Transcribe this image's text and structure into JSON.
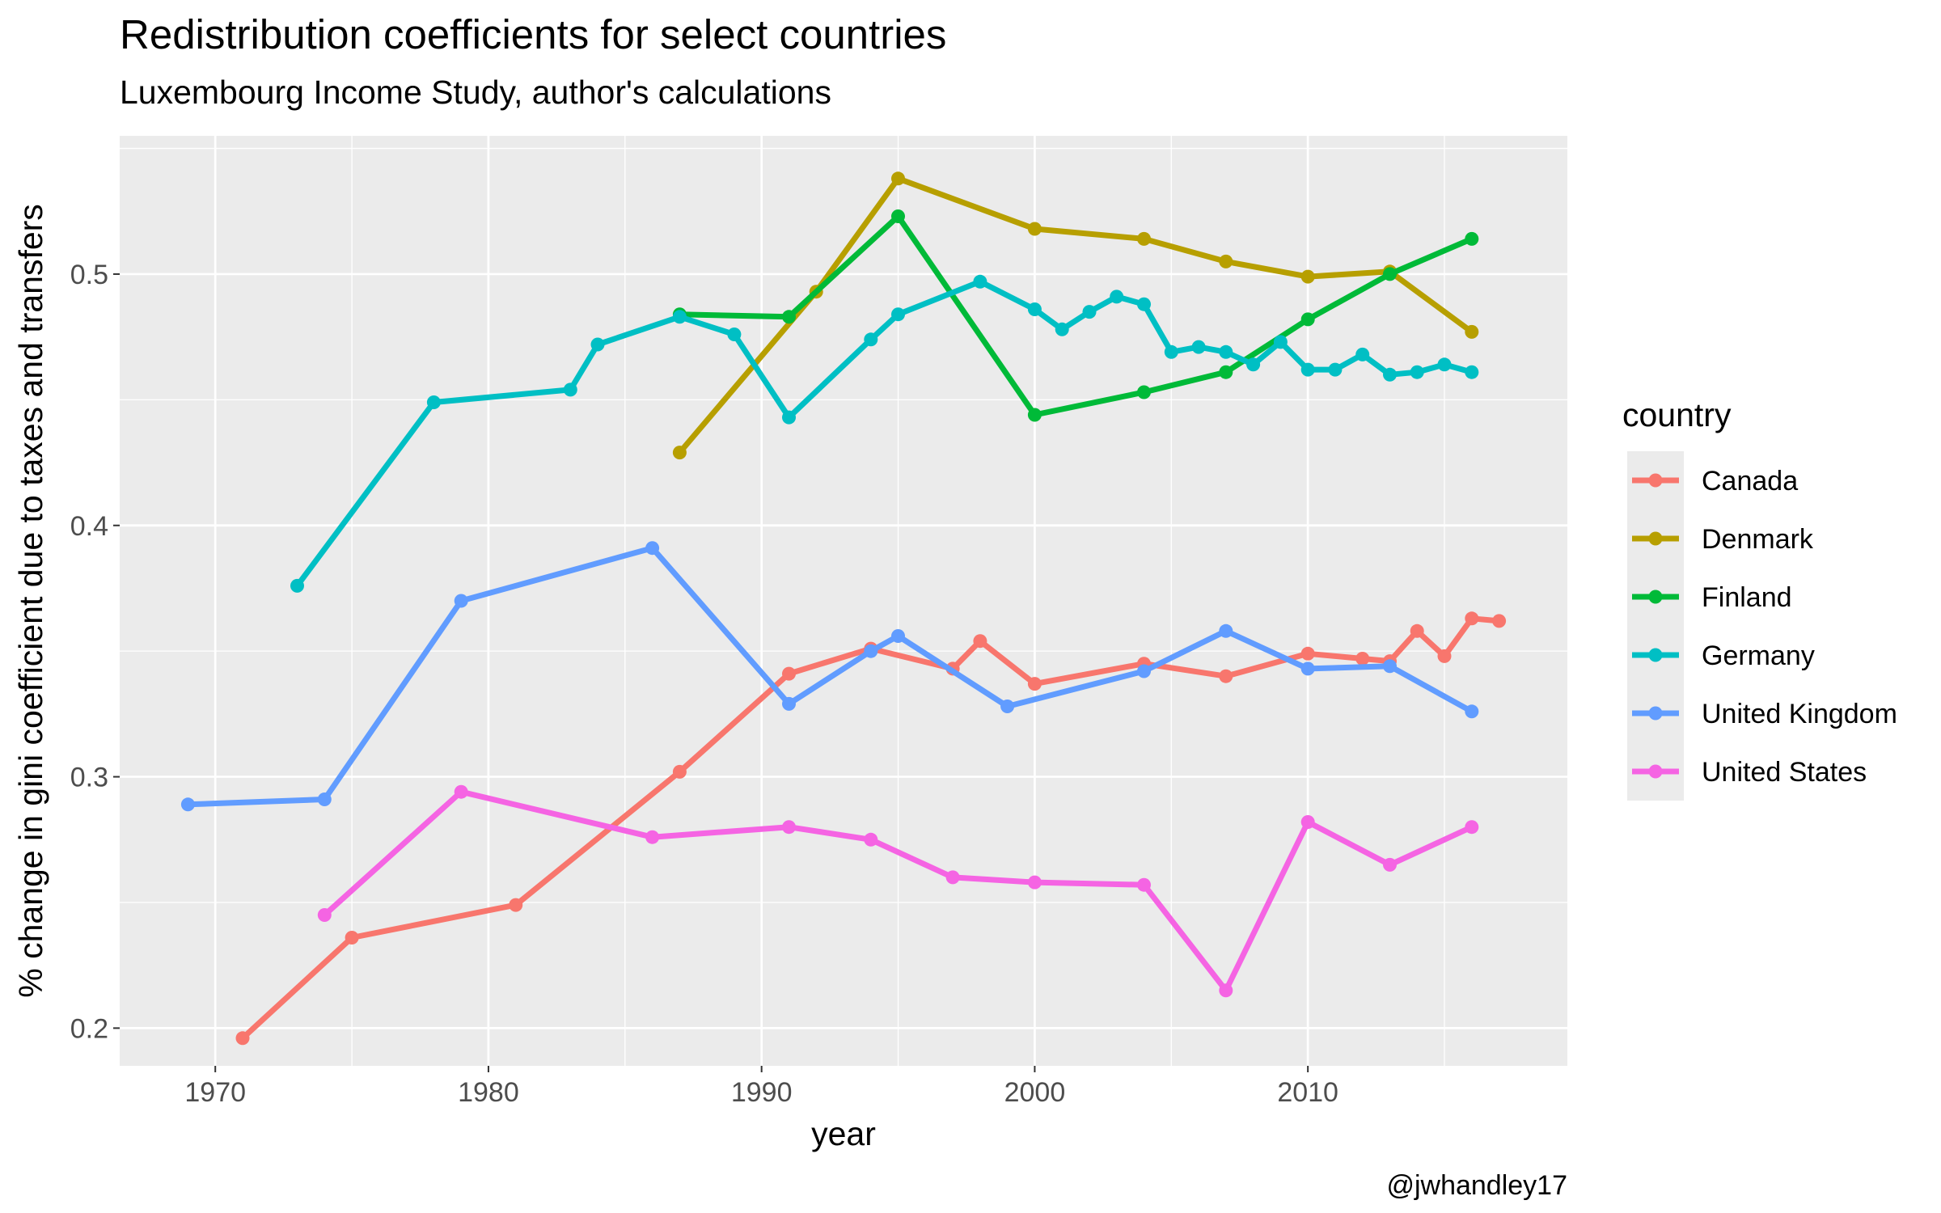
{
  "chart_data": {
    "type": "line",
    "title": "Redistribution coefficients for select countries",
    "subtitle": "Luxembourg Income Study, author's calculations",
    "xlabel": "year",
    "ylabel": "% change in gini coefficient due to taxes and transfers",
    "caption": "@jwhandley17",
    "legend_title": "country",
    "legend_position": "right",
    "xlim": [
      1966.5,
      2019.5
    ],
    "ylim": [
      0.185,
      0.555
    ],
    "x_ticks": [
      1970,
      1980,
      1990,
      2000,
      2010
    ],
    "y_ticks": [
      0.2,
      0.3,
      0.4,
      0.5
    ],
    "x_tick_labels": [
      "1970",
      "1980",
      "1990",
      "2000",
      "2010"
    ],
    "y_tick_labels": [
      "0.2",
      "0.3",
      "0.4",
      "0.5"
    ],
    "grid": true,
    "panel_background": "#ebebeb",
    "series": [
      {
        "name": "Canada",
        "color": "#F8766D",
        "points": [
          [
            1971,
            0.196
          ],
          [
            1975,
            0.236
          ],
          [
            1981,
            0.249
          ],
          [
            1987,
            0.302
          ],
          [
            1991,
            0.341
          ],
          [
            1994,
            0.351
          ],
          [
            1997,
            0.343
          ],
          [
            1998,
            0.354
          ],
          [
            2000,
            0.337
          ],
          [
            2004,
            0.345
          ],
          [
            2007,
            0.34
          ],
          [
            2010,
            0.349
          ],
          [
            2012,
            0.347
          ],
          [
            2013,
            0.346
          ],
          [
            2014,
            0.358
          ],
          [
            2015,
            0.348
          ],
          [
            2016,
            0.363
          ],
          [
            2017,
            0.362
          ]
        ]
      },
      {
        "name": "Denmark",
        "color": "#B79F00",
        "points": [
          [
            1987,
            0.429
          ],
          [
            1992,
            0.493
          ],
          [
            1995,
            0.538
          ],
          [
            2000,
            0.518
          ],
          [
            2004,
            0.514
          ],
          [
            2007,
            0.505
          ],
          [
            2010,
            0.499
          ],
          [
            2013,
            0.501
          ],
          [
            2016,
            0.477
          ]
        ]
      },
      {
        "name": "Finland",
        "color": "#00BA38",
        "points": [
          [
            1987,
            0.484
          ],
          [
            1991,
            0.483
          ],
          [
            1995,
            0.523
          ],
          [
            2000,
            0.444
          ],
          [
            2004,
            0.453
          ],
          [
            2007,
            0.461
          ],
          [
            2010,
            0.482
          ],
          [
            2013,
            0.5
          ],
          [
            2016,
            0.514
          ]
        ]
      },
      {
        "name": "Germany",
        "color": "#00BFC4",
        "points": [
          [
            1973,
            0.376
          ],
          [
            1978,
            0.449
          ],
          [
            1983,
            0.454
          ],
          [
            1984,
            0.472
          ],
          [
            1987,
            0.483
          ],
          [
            1989,
            0.476
          ],
          [
            1991,
            0.443
          ],
          [
            1994,
            0.474
          ],
          [
            1995,
            0.484
          ],
          [
            1998,
            0.497
          ],
          [
            2000,
            0.486
          ],
          [
            2001,
            0.478
          ],
          [
            2002,
            0.485
          ],
          [
            2003,
            0.491
          ],
          [
            2004,
            0.488
          ],
          [
            2005,
            0.469
          ],
          [
            2006,
            0.471
          ],
          [
            2007,
            0.469
          ],
          [
            2008,
            0.464
          ],
          [
            2009,
            0.473
          ],
          [
            2010,
            0.462
          ],
          [
            2011,
            0.462
          ],
          [
            2012,
            0.468
          ],
          [
            2013,
            0.46
          ],
          [
            2014,
            0.461
          ],
          [
            2015,
            0.464
          ],
          [
            2016,
            0.461
          ]
        ]
      },
      {
        "name": "United Kingdom",
        "color": "#619CFF",
        "points": [
          [
            1969,
            0.289
          ],
          [
            1974,
            0.291
          ],
          [
            1979,
            0.37
          ],
          [
            1986,
            0.391
          ],
          [
            1991,
            0.329
          ],
          [
            1994,
            0.35
          ],
          [
            1995,
            0.356
          ],
          [
            1999,
            0.328
          ],
          [
            2004,
            0.342
          ],
          [
            2007,
            0.358
          ],
          [
            2010,
            0.343
          ],
          [
            2013,
            0.344
          ],
          [
            2016,
            0.326
          ]
        ]
      },
      {
        "name": "United States",
        "color": "#F564E3",
        "points": [
          [
            1974,
            0.245
          ],
          [
            1979,
            0.294
          ],
          [
            1986,
            0.276
          ],
          [
            1991,
            0.28
          ],
          [
            1994,
            0.275
          ],
          [
            1997,
            0.26
          ],
          [
            2000,
            0.258
          ],
          [
            2004,
            0.257
          ],
          [
            2007,
            0.215
          ],
          [
            2010,
            0.282
          ],
          [
            2013,
            0.265
          ],
          [
            2016,
            0.28
          ]
        ]
      }
    ]
  }
}
